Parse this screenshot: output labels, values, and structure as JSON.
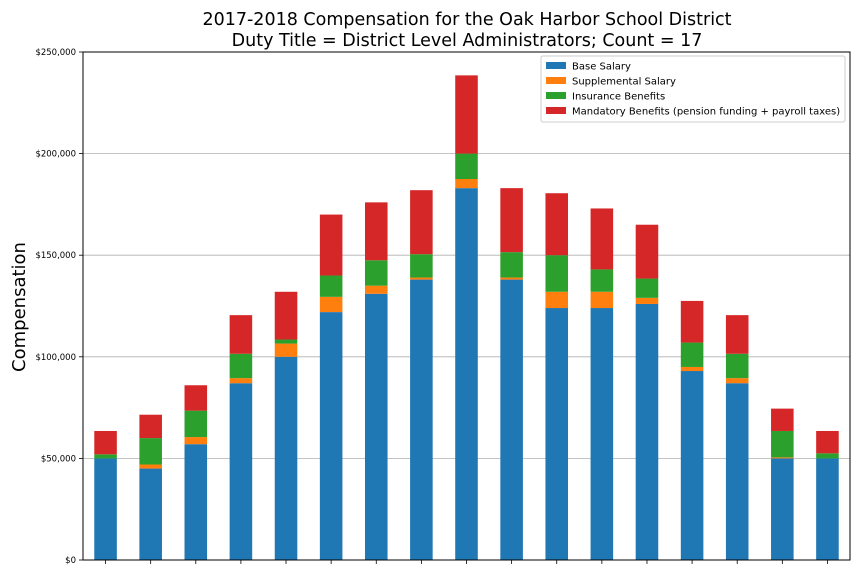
{
  "chart_data": {
    "type": "bar",
    "stacked": true,
    "title": "2017-2018 Compensation for the Oak Harbor School District",
    "subtitle": "Duty Title = District Level Administrators; Count = 17",
    "xlabel": "",
    "ylabel": "Compensation",
    "ylim": [
      0,
      250000
    ],
    "yticks": [
      0,
      50000,
      100000,
      150000,
      200000,
      250000
    ],
    "ytick_labels": [
      "$0",
      "$50,000",
      "$100,000",
      "$150,000",
      "$200,000",
      "$250,000"
    ],
    "grid": "horizontal",
    "legend_position": "top-right",
    "categories_count": 17,
    "series": [
      {
        "name": "Base Salary",
        "color": "#1f77b4",
        "values": [
          50000,
          45000,
          57000,
          87000,
          100000,
          122000,
          131000,
          138000,
          183000,
          138000,
          124000,
          124000,
          126000,
          93000,
          87000,
          50000,
          50000
        ]
      },
      {
        "name": "Supplemental Salary",
        "color": "#ff7f0e",
        "values": [
          0,
          2000,
          3500,
          2500,
          6500,
          7500,
          4000,
          1000,
          4500,
          1000,
          8000,
          8000,
          3000,
          2000,
          2500,
          500,
          0
        ]
      },
      {
        "name": "Insurance Benefits",
        "color": "#2ca02c",
        "values": [
          2000,
          13000,
          13000,
          12000,
          2000,
          10500,
          12500,
          11500,
          12500,
          12500,
          18000,
          11000,
          9500,
          12000,
          12000,
          13000,
          2500
        ]
      },
      {
        "name": "Mandatory Benefits (pension funding + payroll taxes)",
        "color": "#d62728",
        "values": [
          11500,
          11500,
          12500,
          19000,
          23500,
          30000,
          28500,
          31500,
          38500,
          31500,
          30500,
          30000,
          26500,
          20500,
          19000,
          11000,
          11000
        ]
      }
    ]
  }
}
